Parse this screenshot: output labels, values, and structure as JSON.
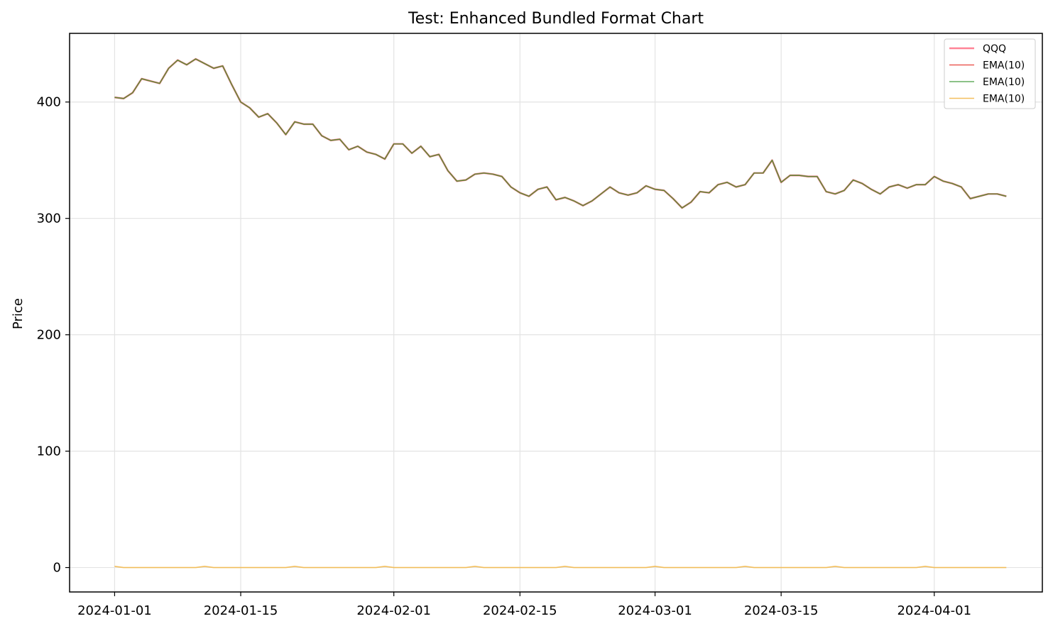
{
  "chart_data": {
    "type": "line",
    "title": "Test: Enhanced Bundled Format Chart",
    "xlabel": "",
    "ylabel": "Price",
    "grid": true,
    "legend_position": "top-right",
    "xlim": [
      "2023-12-27",
      "2024-04-13"
    ],
    "ylim": [
      -21,
      459
    ],
    "x_ticks": [
      "2024-01-01",
      "2024-01-15",
      "2024-02-01",
      "2024-02-15",
      "2024-03-01",
      "2024-03-15",
      "2024-04-01"
    ],
    "y_ticks": [
      0,
      100,
      200,
      300,
      400
    ],
    "x": [
      "2024-01-01",
      "2024-01-02",
      "2024-01-03",
      "2024-01-04",
      "2024-01-05",
      "2024-01-06",
      "2024-01-07",
      "2024-01-08",
      "2024-01-09",
      "2024-01-10",
      "2024-01-11",
      "2024-01-12",
      "2024-01-13",
      "2024-01-14",
      "2024-01-15",
      "2024-01-16",
      "2024-01-17",
      "2024-01-18",
      "2024-01-19",
      "2024-01-20",
      "2024-01-21",
      "2024-01-22",
      "2024-01-23",
      "2024-01-24",
      "2024-01-25",
      "2024-01-26",
      "2024-01-27",
      "2024-01-28",
      "2024-01-29",
      "2024-01-30",
      "2024-01-31",
      "2024-02-01",
      "2024-02-02",
      "2024-02-03",
      "2024-02-04",
      "2024-02-05",
      "2024-02-06",
      "2024-02-07",
      "2024-02-08",
      "2024-02-09",
      "2024-02-10",
      "2024-02-11",
      "2024-02-12",
      "2024-02-13",
      "2024-02-14",
      "2024-02-15",
      "2024-02-16",
      "2024-02-17",
      "2024-02-18",
      "2024-02-19",
      "2024-02-20",
      "2024-02-21",
      "2024-02-22",
      "2024-02-23",
      "2024-02-24",
      "2024-02-25",
      "2024-02-26",
      "2024-02-27",
      "2024-02-28",
      "2024-02-29",
      "2024-03-01",
      "2024-03-02",
      "2024-03-03",
      "2024-03-04",
      "2024-03-05",
      "2024-03-06",
      "2024-03-07",
      "2024-03-08",
      "2024-03-09",
      "2024-03-10",
      "2024-03-11",
      "2024-03-12",
      "2024-03-13",
      "2024-03-14",
      "2024-03-15",
      "2024-03-16",
      "2024-03-17",
      "2024-03-18",
      "2024-03-19",
      "2024-03-20",
      "2024-03-21",
      "2024-03-22",
      "2024-03-23",
      "2024-03-24",
      "2024-03-25",
      "2024-03-26",
      "2024-03-27",
      "2024-03-28",
      "2024-03-29",
      "2024-03-30",
      "2024-03-31",
      "2024-04-01",
      "2024-04-02",
      "2024-04-03",
      "2024-04-04",
      "2024-04-05",
      "2024-04-06",
      "2024-04-07",
      "2024-04-08",
      "2024-04-09"
    ],
    "series": [
      {
        "name": "QQQ",
        "color": "#ff6f85",
        "values": [
          404,
          403,
          408,
          420,
          418,
          416,
          429,
          436,
          432,
          437,
          433,
          429,
          431,
          415,
          400,
          395,
          387,
          390,
          382,
          372,
          383,
          381,
          381,
          371,
          367,
          368,
          359,
          362,
          357,
          355,
          351,
          364,
          364,
          356,
          362,
          353,
          355,
          341,
          332,
          333,
          338,
          339,
          338,
          336,
          327,
          322,
          319,
          325,
          327,
          316,
          318,
          315,
          311,
          315,
          321,
          327,
          322,
          320,
          322,
          328,
          325,
          324,
          317,
          309,
          314,
          323,
          322,
          329,
          331,
          327,
          329,
          339,
          339,
          350,
          331,
          337,
          337,
          336,
          336,
          323,
          321,
          324,
          333,
          330,
          325,
          321,
          327,
          329,
          326,
          329,
          329,
          336,
          332,
          330,
          327,
          317,
          319,
          321,
          321,
          319
        ]
      },
      {
        "name": "EMA(10)",
        "color": "#e8413a",
        "values": [
          404,
          403,
          408,
          420,
          418,
          416,
          429,
          436,
          432,
          437,
          433,
          429,
          431,
          415,
          400,
          395,
          387,
          390,
          382,
          372,
          383,
          381,
          381,
          371,
          367,
          368,
          359,
          362,
          357,
          355,
          351,
          364,
          364,
          356,
          362,
          353,
          355,
          341,
          332,
          333,
          338,
          339,
          338,
          336,
          327,
          322,
          319,
          325,
          327,
          316,
          318,
          315,
          311,
          315,
          321,
          327,
          322,
          320,
          322,
          328,
          325,
          324,
          317,
          309,
          314,
          323,
          322,
          329,
          331,
          327,
          329,
          339,
          339,
          350,
          331,
          337,
          337,
          336,
          336,
          323,
          321,
          324,
          333,
          330,
          325,
          321,
          327,
          329,
          326,
          329,
          329,
          336,
          332,
          330,
          327,
          317,
          319,
          321,
          321,
          319
        ]
      },
      {
        "name": "EMA(10)",
        "color": "#3f9a3a",
        "values": [
          404,
          403,
          408,
          420,
          418,
          416,
          429,
          436,
          432,
          437,
          433,
          429,
          431,
          415,
          400,
          395,
          387,
          390,
          382,
          372,
          383,
          381,
          381,
          371,
          367,
          368,
          359,
          362,
          357,
          355,
          351,
          364,
          364,
          356,
          362,
          353,
          355,
          341,
          332,
          333,
          338,
          339,
          338,
          336,
          327,
          322,
          319,
          325,
          327,
          316,
          318,
          315,
          311,
          315,
          321,
          327,
          322,
          320,
          322,
          328,
          325,
          324,
          317,
          309,
          314,
          323,
          322,
          329,
          331,
          327,
          329,
          339,
          339,
          350,
          331,
          337,
          337,
          336,
          336,
          323,
          321,
          324,
          333,
          330,
          325,
          321,
          327,
          329,
          326,
          329,
          329,
          336,
          332,
          330,
          327,
          317,
          319,
          321,
          321,
          319
        ]
      },
      {
        "name": "EMA(10)",
        "color": "#f2b84b",
        "values": [
          1,
          0,
          0,
          0,
          0,
          0,
          0,
          0,
          0,
          0,
          1,
          0,
          0,
          0,
          0,
          0,
          0,
          0,
          0,
          0,
          1,
          0,
          0,
          0,
          0,
          0,
          0,
          0,
          0,
          0,
          1,
          0,
          0,
          0,
          0,
          0,
          0,
          0,
          0,
          0,
          1,
          0,
          0,
          0,
          0,
          0,
          0,
          0,
          0,
          0,
          1,
          0,
          0,
          0,
          0,
          0,
          0,
          0,
          0,
          0,
          1,
          0,
          0,
          0,
          0,
          0,
          0,
          0,
          0,
          0,
          1,
          0,
          0,
          0,
          0,
          0,
          0,
          0,
          0,
          0,
          1,
          0,
          0,
          0,
          0,
          0,
          0,
          0,
          0,
          0,
          1,
          0,
          0,
          0,
          0,
          0,
          0,
          0,
          0,
          0
        ]
      }
    ]
  }
}
